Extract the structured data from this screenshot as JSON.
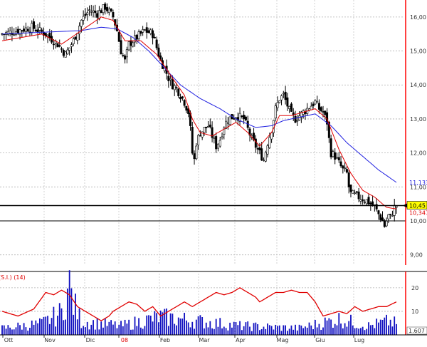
{
  "chart_data": [
    {
      "type": "candlestick",
      "title": "",
      "price_axis": {
        "ylim": [
          8.7,
          16.5
        ],
        "ticks": [
          "16,00",
          "15,00",
          "14,00",
          "13,00",
          "12,00",
          "11,00",
          "10,00",
          "9,00"
        ]
      },
      "month_labels": [
        "Ott",
        "Nov",
        "Dic",
        "08",
        "Feb",
        "Mar",
        "Apr",
        "Mag",
        "Giu",
        "Lug"
      ],
      "grid": true,
      "reference_lines": {
        "last_price": 10.45,
        "support": 10.0
      },
      "markers": {
        "last_price_label": "10,45",
        "ma_long_label": "11,133",
        "ma_short_label": "10,347"
      },
      "colors": {
        "ma_short": "#e00000",
        "ma_long": "#2020e0",
        "candle": "#000000",
        "last_price_box": "#ffff00",
        "axis": "#ff0000"
      },
      "price_path": [
        [
          0,
          15.5
        ],
        [
          8,
          15.6
        ],
        [
          15,
          15.7
        ],
        [
          22,
          15.5
        ],
        [
          28,
          15.2
        ],
        [
          32,
          14.9
        ],
        [
          36,
          15.3
        ],
        [
          40,
          15.9
        ],
        [
          44,
          16.2
        ],
        [
          48,
          16.1
        ],
        [
          52,
          16.3
        ],
        [
          56,
          16.0
        ],
        [
          58,
          15.6
        ],
        [
          60,
          15.0
        ],
        [
          62,
          14.7
        ],
        [
          64,
          15.2
        ],
        [
          68,
          15.4
        ],
        [
          72,
          15.6
        ],
        [
          76,
          15.5
        ],
        [
          78,
          15.1
        ],
        [
          80,
          14.7
        ],
        [
          82,
          14.5
        ],
        [
          84,
          14.2
        ],
        [
          86,
          14.0
        ],
        [
          88,
          13.9
        ],
        [
          90,
          13.7
        ],
        [
          92,
          13.5
        ],
        [
          94,
          13.2
        ],
        [
          95,
          12.7
        ],
        [
          96,
          12.0
        ],
        [
          97,
          11.8
        ],
        [
          98,
          12.3
        ],
        [
          100,
          12.6
        ],
        [
          104,
          12.8
        ],
        [
          106,
          12.5
        ],
        [
          108,
          12.2
        ],
        [
          110,
          12.4
        ],
        [
          112,
          12.8
        ],
        [
          114,
          13.0
        ],
        [
          118,
          13.1
        ],
        [
          122,
          13.0
        ],
        [
          124,
          12.7
        ],
        [
          126,
          12.4
        ],
        [
          128,
          12.2
        ],
        [
          130,
          12.0
        ],
        [
          132,
          11.8
        ],
        [
          134,
          12.3
        ],
        [
          136,
          12.7
        ],
        [
          138,
          13.3
        ],
        [
          140,
          13.6
        ],
        [
          142,
          13.7
        ],
        [
          144,
          13.4
        ],
        [
          146,
          13.1
        ],
        [
          148,
          13.0
        ],
        [
          150,
          13.1
        ],
        [
          154,
          13.3
        ],
        [
          158,
          13.5
        ],
        [
          160,
          13.3
        ],
        [
          162,
          13.2
        ],
        [
          164,
          12.9
        ],
        [
          165,
          12.4
        ],
        [
          166,
          12.0
        ],
        [
          168,
          11.9
        ],
        [
          170,
          11.7
        ],
        [
          172,
          11.5
        ],
        [
          174,
          11.4
        ],
        [
          175,
          11.0
        ],
        [
          176,
          10.8
        ],
        [
          180,
          10.7
        ],
        [
          184,
          10.6
        ],
        [
          188,
          10.4
        ],
        [
          190,
          10.2
        ],
        [
          192,
          10.0
        ],
        [
          193,
          9.85
        ],
        [
          194,
          10.0
        ],
        [
          195,
          10.15
        ],
        [
          196,
          10.1
        ],
        [
          197,
          10.25
        ],
        [
          198,
          10.4
        ],
        [
          199,
          10.45
        ]
      ],
      "ma_short": [
        [
          0,
          15.3
        ],
        [
          20,
          15.5
        ],
        [
          30,
          15.2
        ],
        [
          40,
          15.6
        ],
        [
          50,
          16.0
        ],
        [
          56,
          15.9
        ],
        [
          62,
          15.3
        ],
        [
          70,
          15.3
        ],
        [
          78,
          14.9
        ],
        [
          86,
          14.2
        ],
        [
          92,
          13.7
        ],
        [
          96,
          13.0
        ],
        [
          100,
          12.6
        ],
        [
          106,
          12.5
        ],
        [
          112,
          12.7
        ],
        [
          118,
          12.9
        ],
        [
          124,
          12.6
        ],
        [
          130,
          12.2
        ],
        [
          136,
          12.6
        ],
        [
          140,
          13.1
        ],
        [
          146,
          13.1
        ],
        [
          152,
          13.2
        ],
        [
          158,
          13.3
        ],
        [
          164,
          13.0
        ],
        [
          170,
          12.1
        ],
        [
          176,
          11.4
        ],
        [
          182,
          10.9
        ],
        [
          188,
          10.7
        ],
        [
          194,
          10.4
        ],
        [
          199,
          10.35
        ]
      ],
      "ma_long": [
        [
          0,
          15.5
        ],
        [
          20,
          15.55
        ],
        [
          40,
          15.6
        ],
        [
          50,
          15.7
        ],
        [
          58,
          15.65
        ],
        [
          66,
          15.4
        ],
        [
          74,
          15.0
        ],
        [
          82,
          14.5
        ],
        [
          90,
          14.0
        ],
        [
          100,
          13.6
        ],
        [
          110,
          13.3
        ],
        [
          118,
          13.0
        ],
        [
          128,
          12.75
        ],
        [
          136,
          12.8
        ],
        [
          142,
          12.95
        ],
        [
          150,
          13.05
        ],
        [
          158,
          13.15
        ],
        [
          166,
          12.8
        ],
        [
          174,
          12.3
        ],
        [
          182,
          11.9
        ],
        [
          190,
          11.5
        ],
        [
          199,
          11.133
        ]
      ]
    },
    {
      "type": "line+bar",
      "series_label": "(S.I.) (14)",
      "ylim": [
        0,
        26
      ],
      "ticks": [
        "20",
        "10"
      ],
      "last_value_label": "1.607",
      "colors": {
        "line": "#e00000",
        "volume": "#1010c0"
      },
      "indicator_line": [
        [
          0,
          10
        ],
        [
          8,
          8
        ],
        [
          16,
          11
        ],
        [
          22,
          18
        ],
        [
          26,
          17
        ],
        [
          30,
          19
        ],
        [
          34,
          17
        ],
        [
          38,
          12
        ],
        [
          42,
          10
        ],
        [
          46,
          8
        ],
        [
          50,
          6
        ],
        [
          54,
          8
        ],
        [
          56,
          10
        ],
        [
          60,
          12
        ],
        [
          64,
          14
        ],
        [
          68,
          13
        ],
        [
          72,
          10
        ],
        [
          76,
          12
        ],
        [
          80,
          8
        ],
        [
          84,
          10
        ],
        [
          88,
          12
        ],
        [
          92,
          14
        ],
        [
          96,
          12
        ],
        [
          100,
          14
        ],
        [
          104,
          16
        ],
        [
          108,
          18
        ],
        [
          112,
          17
        ],
        [
          116,
          18
        ],
        [
          120,
          20
        ],
        [
          124,
          18
        ],
        [
          128,
          16
        ],
        [
          130,
          14
        ],
        [
          134,
          16
        ],
        [
          138,
          18
        ],
        [
          142,
          18
        ],
        [
          146,
          19
        ],
        [
          150,
          18
        ],
        [
          154,
          18
        ],
        [
          158,
          14
        ],
        [
          162,
          8
        ],
        [
          166,
          9
        ],
        [
          170,
          10
        ],
        [
          174,
          9
        ],
        [
          178,
          12
        ],
        [
          182,
          10
        ],
        [
          186,
          11
        ],
        [
          190,
          12
        ],
        [
          194,
          12
        ],
        [
          199,
          14
        ]
      ],
      "volume_bars_count": 200,
      "volume_profile": [
        [
          0,
          3
        ],
        [
          20,
          5
        ],
        [
          30,
          10
        ],
        [
          34,
          22
        ],
        [
          36,
          14
        ],
        [
          40,
          6
        ],
        [
          60,
          4
        ],
        [
          80,
          8
        ],
        [
          100,
          6
        ],
        [
          120,
          4
        ],
        [
          150,
          3
        ],
        [
          160,
          5
        ],
        [
          170,
          7
        ],
        [
          185,
          4
        ],
        [
          195,
          6
        ],
        [
          199,
          5
        ]
      ]
    }
  ]
}
